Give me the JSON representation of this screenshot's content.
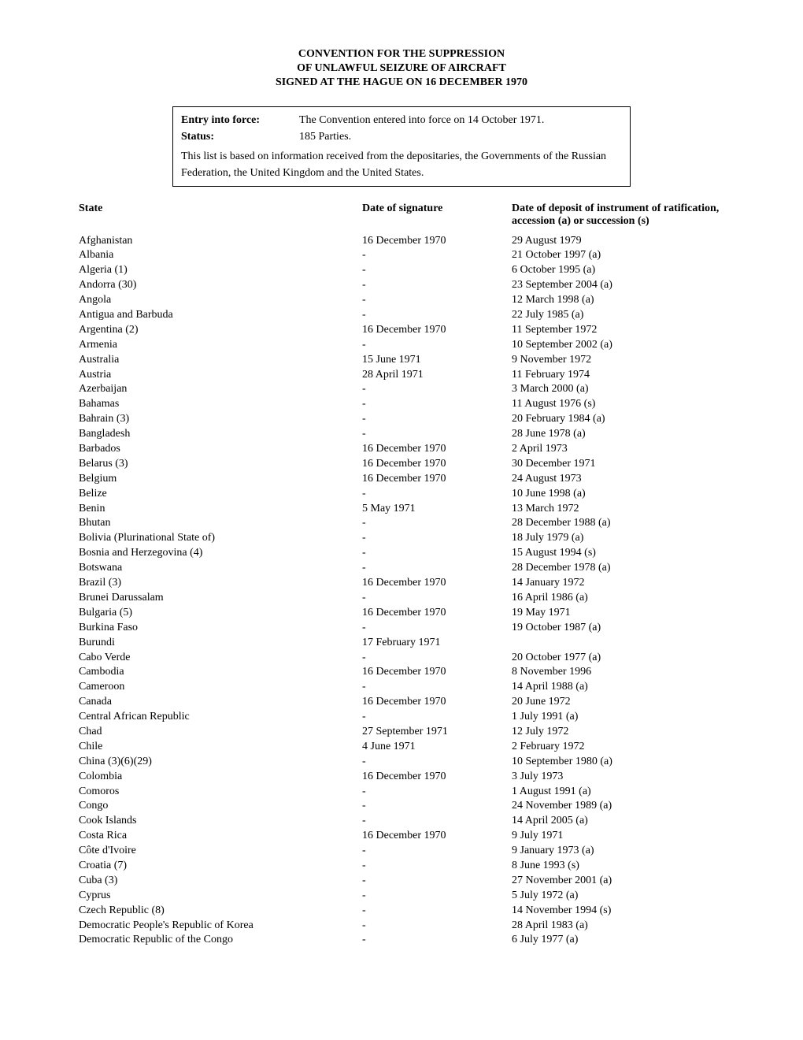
{
  "title": {
    "line1": "CONVENTION FOR THE SUPPRESSION",
    "line2": "OF UNLAWFUL SEIZURE OF AIRCRAFT",
    "line3": "SIGNED AT THE HAGUE ON 16 DECEMBER 1970"
  },
  "info": {
    "entry_label": "Entry into force",
    "entry_value": "The Convention entered into force on 14 October 1971.",
    "status_label": "Status",
    "status_value": "185 Parties.",
    "note": "This list is based on information received from the depositaries, the Governments of the Russian Federation, the United Kingdom and the United States."
  },
  "headers": {
    "state": "State",
    "signature": "Date of signature",
    "deposit": "Date of deposit of instrument of ratification, accession (a) or succession (s)"
  },
  "rows": [
    {
      "state": "Afghanistan",
      "sig": "16 December 1970",
      "dep": "29 August 1979"
    },
    {
      "state": "Albania",
      "sig": "-",
      "dep": "21 October 1997 (a)"
    },
    {
      "state": "Algeria (1)",
      "sig": "-",
      "dep": "6 October 1995 (a)"
    },
    {
      "state": "Andorra (30)",
      "sig": "-",
      "dep": "23 September 2004 (a)"
    },
    {
      "state": "Angola",
      "sig": "-",
      "dep": "12 March 1998 (a)"
    },
    {
      "state": "Antigua and Barbuda",
      "sig": "-",
      "dep": "22 July 1985 (a)"
    },
    {
      "state": "Argentina (2)",
      "sig": "16 December 1970",
      "dep": "11 September 1972"
    },
    {
      "state": "Armenia",
      "sig": "-",
      "dep": "10 September 2002 (a)"
    },
    {
      "state": "Australia",
      "sig": "15 June 1971",
      "dep": "9 November 1972"
    },
    {
      "state": "Austria",
      "sig": "28 April 1971",
      "dep": "11 February 1974"
    },
    {
      "state": "Azerbaijan",
      "sig": "-",
      "dep": "3 March 2000 (a)"
    },
    {
      "state": "Bahamas",
      "sig": "-",
      "dep": "11 August 1976 (s)"
    },
    {
      "state": "Bahrain (3)",
      "sig": "-",
      "dep": "20 February 1984 (a)"
    },
    {
      "state": "Bangladesh",
      "sig": "-",
      "dep": "28 June 1978 (a)"
    },
    {
      "state": "Barbados",
      "sig": "16 December 1970",
      "dep": "2 April 1973"
    },
    {
      "state": "Belarus (3)",
      "sig": "16 December 1970",
      "dep": "30 December 1971"
    },
    {
      "state": "Belgium",
      "sig": "16 December 1970",
      "dep": "24 August 1973"
    },
    {
      "state": "Belize",
      "sig": "-",
      "dep": "10 June 1998 (a)"
    },
    {
      "state": "Benin",
      "sig": "5 May 1971",
      "dep": "13 March 1972"
    },
    {
      "state": "Bhutan",
      "sig": "-",
      "dep": "28 December 1988 (a)"
    },
    {
      "state": "Bolivia (Plurinational State of)",
      "sig": "-",
      "dep": "18 July 1979 (a)"
    },
    {
      "state": "Bosnia and Herzegovina (4)",
      "sig": "-",
      "dep": "15 August 1994 (s)"
    },
    {
      "state": "Botswana",
      "sig": "-",
      "dep": "28 December 1978 (a)"
    },
    {
      "state": "Brazil (3)",
      "sig": "16 December 1970",
      "dep": "14 January 1972"
    },
    {
      "state": "Brunei Darussalam",
      "sig": "-",
      "dep": "16 April 1986 (a)"
    },
    {
      "state": "Bulgaria (5)",
      "sig": "16 December 1970",
      "dep": "19 May 1971"
    },
    {
      "state": "Burkina Faso",
      "sig": "-",
      "dep": "19 October 1987 (a)"
    },
    {
      "state": "Burundi",
      "sig": "17 February 1971",
      "dep": ""
    },
    {
      "state": "Cabo Verde",
      "sig": "-",
      "dep": "20 October 1977 (a)"
    },
    {
      "state": "Cambodia",
      "sig": "16 December 1970",
      "dep": "8 November 1996"
    },
    {
      "state": "Cameroon",
      "sig": "-",
      "dep": "14 April 1988 (a)"
    },
    {
      "state": "Canada",
      "sig": "16 December 1970",
      "dep": "20 June 1972"
    },
    {
      "state": "Central African Republic",
      "sig": "-",
      "dep": "1 July 1991 (a)"
    },
    {
      "state": "Chad",
      "sig": "27 September 1971",
      "dep": "12 July 1972"
    },
    {
      "state": "Chile",
      "sig": "4 June 1971",
      "dep": "2 February 1972"
    },
    {
      "state": "China (3)(6)(29)",
      "sig": "-",
      "dep": "10 September 1980 (a)"
    },
    {
      "state": "Colombia",
      "sig": "16 December 1970",
      "dep": "3 July 1973"
    },
    {
      "state": "Comoros",
      "sig": "-",
      "dep": "1 August 1991 (a)"
    },
    {
      "state": "Congo",
      "sig": "-",
      "dep": "24 November 1989 (a)"
    },
    {
      "state": "Cook Islands",
      "sig": "-",
      "dep": "14 April 2005 (a)"
    },
    {
      "state": "Costa Rica",
      "sig": "16 December 1970",
      "dep": "9 July 1971"
    },
    {
      "state": "Côte d'Ivoire",
      "sig": "-",
      "dep": "9 January 1973 (a)"
    },
    {
      "state": "Croatia (7)",
      "sig": "-",
      "dep": "8 June 1993 (s)"
    },
    {
      "state": "Cuba (3)",
      "sig": "-",
      "dep": "27 November 2001 (a)"
    },
    {
      "state": "Cyprus",
      "sig": "-",
      "dep": "5 July 1972 (a)"
    },
    {
      "state": "Czech Republic (8)",
      "sig": "-",
      "dep": "14 November 1994 (s)"
    },
    {
      "state": "Democratic People's Republic of Korea",
      "sig": "-",
      "dep": "28 April 1983 (a)"
    },
    {
      "state": "Democratic Republic of the Congo",
      "sig": "-",
      "dep": "6 July 1977 (a)"
    }
  ]
}
